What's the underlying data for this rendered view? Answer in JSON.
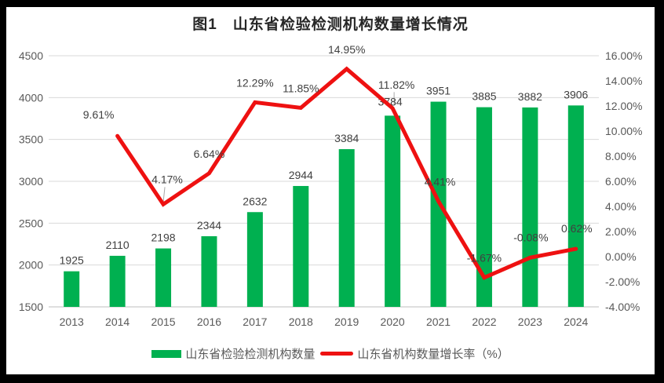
{
  "title": "图1　山东省检验检测机构数量增长情况",
  "legend": [
    {
      "type": "bar",
      "label": "山东省检验检测机构数量",
      "color": "#00B050"
    },
    {
      "type": "line",
      "label": "山东省机构数量增长率（%）",
      "color": "#EE1111"
    }
  ],
  "colors": {
    "frame": "#000000",
    "card": "#ffffff",
    "grid": "#D9D9D9",
    "axis_line": "#BFBFBF",
    "axis_text": "#595959",
    "data_label": "#404040",
    "leader": "#A6A6A6"
  },
  "chart_data": {
    "type": "combo-bar-line",
    "title": "图1　山东省检验检测机构数量增长情况",
    "categories": [
      "2013",
      "2014",
      "2015",
      "2016",
      "2017",
      "2018",
      "2019",
      "2020",
      "2021",
      "2022",
      "2023",
      "2024"
    ],
    "series": [
      {
        "name": "山东省检验检测机构数量",
        "type": "bar",
        "axis": "left",
        "color": "#00B050",
        "values": [
          1925,
          2110,
          2198,
          2344,
          2632,
          2944,
          3384,
          3784,
          3951,
          3885,
          3882,
          3906
        ],
        "labels": [
          "1925",
          "2110",
          "2198",
          "2344",
          "2632",
          "2944",
          "3384",
          "3784",
          "3951",
          "3885",
          "3882",
          "3906"
        ]
      },
      {
        "name": "山东省机构数量增长率（%）",
        "type": "line",
        "axis": "right",
        "color": "#EE1111",
        "values": [
          null,
          9.61,
          4.17,
          6.64,
          12.29,
          11.85,
          14.95,
          11.82,
          4.41,
          -1.67,
          -0.08,
          0.62
        ],
        "labels": [
          null,
          "9.61%",
          "4.17%",
          "6.64%",
          "12.29%",
          "11.85%",
          "14.95%",
          "11.82%",
          "4.41%",
          "-1.67%",
          "-0.08%",
          "0.62%"
        ]
      }
    ],
    "left_axis": {
      "min": 1500,
      "max": 4500,
      "step": 500,
      "ticks": [
        "4500",
        "4000",
        "3500",
        "3000",
        "2500",
        "2000",
        "1500"
      ]
    },
    "right_axis": {
      "min": -4,
      "max": 16,
      "step": 2,
      "ticks": [
        "16.00%",
        "14.00%",
        "12.00%",
        "10.00%",
        "8.00%",
        "6.00%",
        "4.00%",
        "2.00%",
        "0.00%",
        "-2.00%",
        "-4.00%"
      ]
    },
    "grid": true,
    "legend_position": "bottom",
    "label_offsets": {
      "1": [
        -24,
        -22
      ],
      "2": [
        5,
        -27
      ],
      "7": [
        5,
        -25
      ],
      "8": [
        2,
        -20
      ],
      "10": [
        1,
        -21
      ],
      "11": [
        1,
        -21
      ]
    },
    "bar_label_offsets": {
      "7": [
        -3,
        -4
      ]
    },
    "leader_lines": [
      {
        "series": "line",
        "index": 2,
        "from": [
          2,
          -22
        ],
        "to": [
          0,
          -3
        ]
      },
      {
        "series": "bar",
        "index": 7,
        "from": [
          2,
          -30
        ],
        "to": [
          2,
          -13
        ]
      }
    ]
  }
}
